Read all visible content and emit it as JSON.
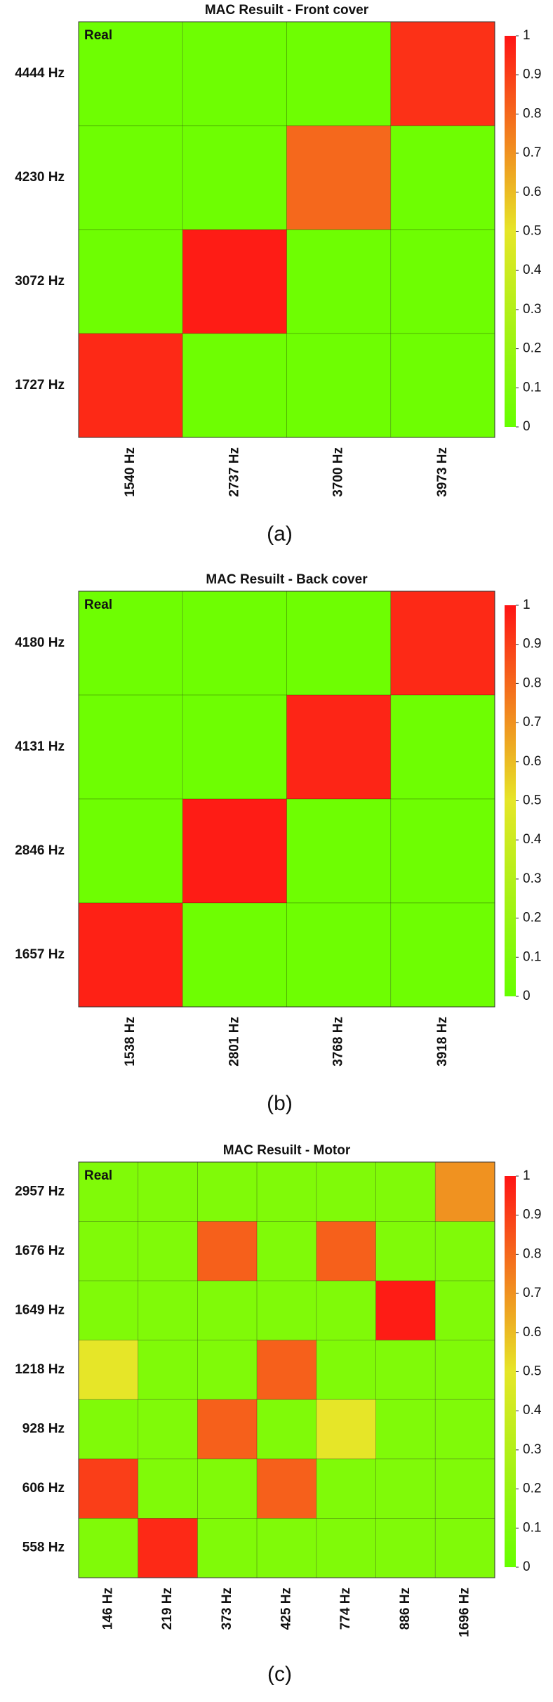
{
  "chart_data": [
    {
      "type": "heatmap",
      "title": "MAC Resuilt - Front cover",
      "annotation": "Real",
      "caption": "(a)",
      "x": [
        "1540 Hz",
        "2737 Hz",
        "3700 Hz",
        "3973 Hz"
      ],
      "y": [
        "4444 Hz",
        "4230 Hz",
        "3072 Hz",
        "1727 Hz"
      ],
      "values": [
        [
          0.03,
          0.03,
          0.03,
          0.93
        ],
        [
          0.03,
          0.03,
          0.8,
          0.03
        ],
        [
          0.03,
          0.98,
          0.03,
          0.03
        ],
        [
          0.95,
          0.03,
          0.03,
          0.03
        ]
      ],
      "clim": [
        0,
        1
      ],
      "cticks": [
        0,
        0.1,
        0.2,
        0.3,
        0.4,
        0.5,
        0.6,
        0.7,
        0.8,
        0.9,
        1
      ]
    },
    {
      "type": "heatmap",
      "title": "MAC Resuilt - Back cover",
      "annotation": "Real",
      "caption": "(b)",
      "x": [
        "1538 Hz",
        "2801 Hz",
        "3768 Hz",
        "3918 Hz"
      ],
      "y": [
        "4180 Hz",
        "4131 Hz",
        "2846 Hz",
        "1657 Hz"
      ],
      "values": [
        [
          0.03,
          0.03,
          0.03,
          0.95
        ],
        [
          0.03,
          0.03,
          0.96,
          0.03
        ],
        [
          0.03,
          0.98,
          0.03,
          0.03
        ],
        [
          0.97,
          0.03,
          0.03,
          0.03
        ]
      ],
      "clim": [
        0,
        1
      ],
      "cticks": [
        0,
        0.1,
        0.2,
        0.3,
        0.4,
        0.5,
        0.6,
        0.7,
        0.8,
        0.9,
        1
      ]
    },
    {
      "type": "heatmap",
      "title": "MAC Resuilt - Motor",
      "annotation": "Real",
      "caption": "(c)",
      "x": [
        "146 Hz",
        "219 Hz",
        "373 Hz",
        "425 Hz",
        "774 Hz",
        "886 Hz",
        "1696 Hz"
      ],
      "y": [
        "2957 Hz",
        "1676 Hz",
        "1649 Hz",
        "1218 Hz",
        "928 Hz",
        "606 Hz",
        "558 Hz"
      ],
      "values": [
        [
          0.1,
          0.1,
          0.1,
          0.1,
          0.1,
          0.1,
          0.7
        ],
        [
          0.1,
          0.1,
          0.82,
          0.1,
          0.82,
          0.1,
          0.1
        ],
        [
          0.1,
          0.1,
          0.1,
          0.1,
          0.1,
          0.98,
          0.1
        ],
        [
          0.5,
          0.1,
          0.1,
          0.82,
          0.1,
          0.1,
          0.1
        ],
        [
          0.1,
          0.1,
          0.82,
          0.1,
          0.5,
          0.1,
          0.1
        ],
        [
          0.9,
          0.1,
          0.1,
          0.82,
          0.1,
          0.1,
          0.1
        ],
        [
          0.1,
          0.95,
          0.1,
          0.1,
          0.1,
          0.1,
          0.1
        ]
      ],
      "clim": [
        0,
        1
      ],
      "cticks": [
        0,
        0.1,
        0.2,
        0.3,
        0.4,
        0.5,
        0.6,
        0.7,
        0.8,
        0.9,
        1
      ]
    }
  ]
}
